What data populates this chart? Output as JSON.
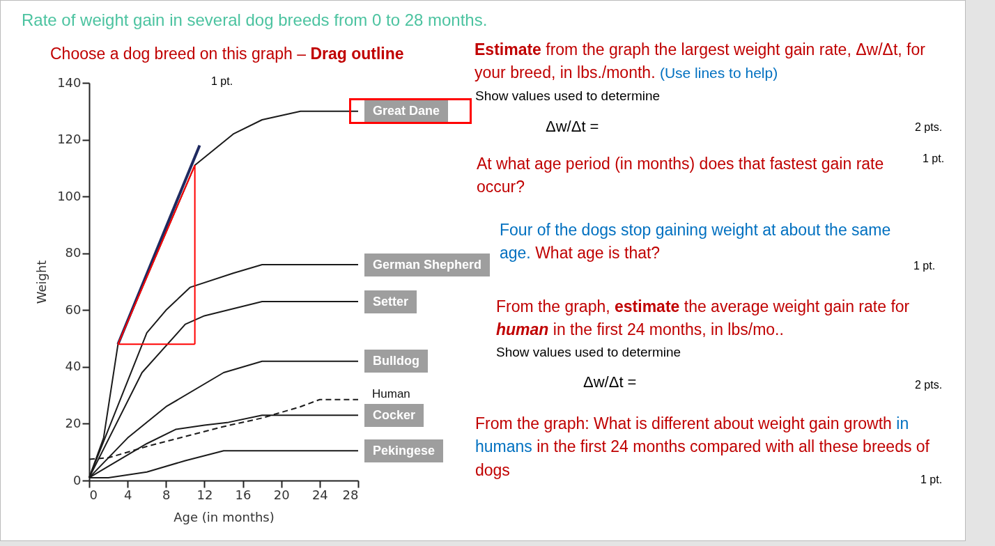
{
  "chart_data": {
    "type": "line",
    "title": "Rate of weight gain in several dog breeds from 0 to 28 months.",
    "xlabel": "Age (in months)",
    "ylabel": "Weight",
    "xlim": [
      0,
      28
    ],
    "xticks": [
      0,
      4,
      8,
      12,
      16,
      20,
      24,
      28
    ],
    "ylim": [
      0,
      140
    ],
    "yticks": [
      0,
      20,
      40,
      60,
      80,
      100,
      120,
      140
    ],
    "grid": false,
    "marker": "none",
    "series": [
      {
        "name": "Great Dane",
        "color": "#1a1a1a",
        "x": [
          0,
          1.5,
          3,
          11,
          15,
          18,
          22,
          28
        ],
        "values": [
          1,
          15,
          48,
          111,
          122,
          127,
          130,
          130
        ]
      },
      {
        "name": "German Shepherd",
        "color": "#1a1a1a",
        "x": [
          0,
          6,
          8,
          10.5,
          15,
          18,
          28
        ],
        "values": [
          1,
          52,
          60,
          68,
          73,
          76,
          76
        ]
      },
      {
        "name": "Setter",
        "color": "#1a1a1a",
        "x": [
          0,
          5.5,
          10,
          12,
          18,
          28
        ],
        "values": [
          1,
          38,
          55,
          58,
          63,
          63
        ]
      },
      {
        "name": "Bulldog",
        "color": "#1a1a1a",
        "x": [
          0,
          4,
          8,
          14,
          18,
          28
        ],
        "values": [
          1,
          15,
          26,
          38,
          42,
          42
        ]
      },
      {
        "name": "Human",
        "color": "#1a1a1a",
        "line_style": "dashed",
        "x": [
          0,
          2,
          6,
          10,
          14,
          18,
          22,
          24,
          28
        ],
        "values": [
          7.5,
          8,
          12,
          15.5,
          19,
          22,
          26,
          28.5,
          28.5
        ]
      },
      {
        "name": "Cocker",
        "color": "#1a1a1a",
        "x": [
          0,
          6,
          9,
          12,
          14.5,
          18,
          28
        ],
        "values": [
          1,
          13,
          18,
          19.5,
          20.5,
          23,
          23
        ]
      },
      {
        "name": "Pekingese",
        "color": "#1a1a1a",
        "x": [
          0,
          2,
          6,
          10,
          14,
          28
        ],
        "values": [
          1,
          1,
          3,
          7,
          10.5,
          10.5
        ]
      },
      {
        "color": "#1f2a60",
        "x": [
          3,
          11.5
        ],
        "values": [
          48,
          118
        ]
      },
      {
        "color": "#ff0000",
        "x": [
          3,
          11
        ],
        "values": [
          48,
          111
        ]
      },
      {
        "color": "#ff0000",
        "x": [
          11,
          11
        ],
        "values": [
          111,
          48
        ]
      },
      {
        "color": "#ff0000",
        "x": [
          3,
          11
        ],
        "values": [
          48,
          48
        ]
      }
    ],
    "annotations": [
      "Choose a dog breed on this graph – ",
      "Drag outline",
      "1 pt.",
      "Estimate",
      " from the graph the largest weight gain rate, Δw/Δt, for your breed, in lbs./month. ",
      "(Use lines to help)",
      "Show values used to determine",
      "Δw/Δt =",
      "2 pts.",
      "At what age period (in months) does that fastest gain rate occur?",
      "1 pt.",
      "Four of the dogs stop gaining weight at about the same age.  ",
      "What age is that?",
      "1 pt.",
      "From the graph, ",
      "estimate",
      " the average weight gain rate for ",
      "human",
      " in the first 24 months, in lbs/mo..",
      "Show values used to determine",
      "Δw/Δt =",
      "2 pts.",
      "From the graph: What is different about weight gain growth ",
      "in humans",
      " in the first 24 months compared with all these breeds of dogs",
      "1 pt."
    ]
  }
}
